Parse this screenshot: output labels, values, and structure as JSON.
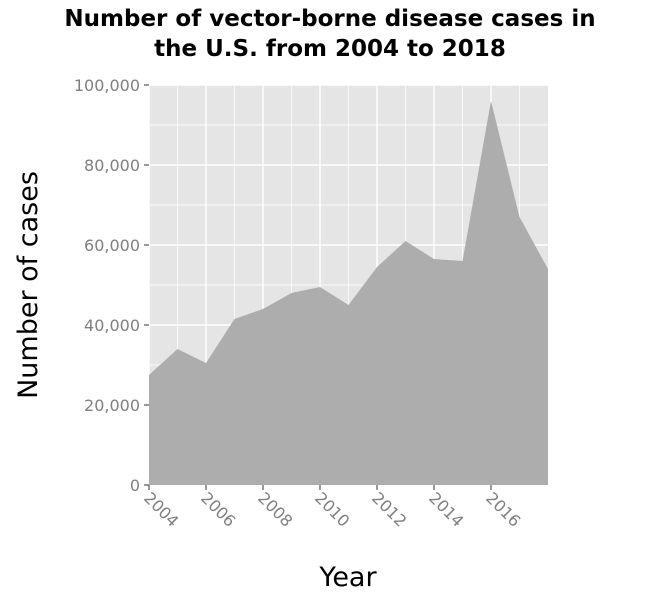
{
  "chart_data": {
    "type": "area",
    "title": "Number of vector-borne disease cases in\nthe U.S. from 2004 to 2018",
    "xlabel": "Year",
    "ylabel": "Number of cases",
    "x": [
      2004,
      2005,
      2006,
      2007,
      2008,
      2009,
      2010,
      2011,
      2012,
      2013,
      2014,
      2015,
      2016,
      2017,
      2018
    ],
    "series": [
      {
        "values": [
          27500,
          34000,
          30500,
          41500,
          44000,
          48000,
          49500,
          45000,
          54500,
          61000,
          56500,
          56000,
          96000,
          67000,
          54000
        ]
      }
    ],
    "xlim": [
      2004,
      2018
    ],
    "ylim": [
      0,
      100000
    ],
    "x_ticks": [
      "2004",
      "2006",
      "2008",
      "2010",
      "2012",
      "2014",
      "2016"
    ],
    "y_ticks": [
      "0",
      "20,000",
      "40,000",
      "60,000",
      "80,000",
      "100,000"
    ],
    "grid": true,
    "colors": {
      "panel": "#e5e5e5",
      "area": "#adadad",
      "grid": "#ffffff",
      "tick_text": "#7f7f7f"
    }
  }
}
